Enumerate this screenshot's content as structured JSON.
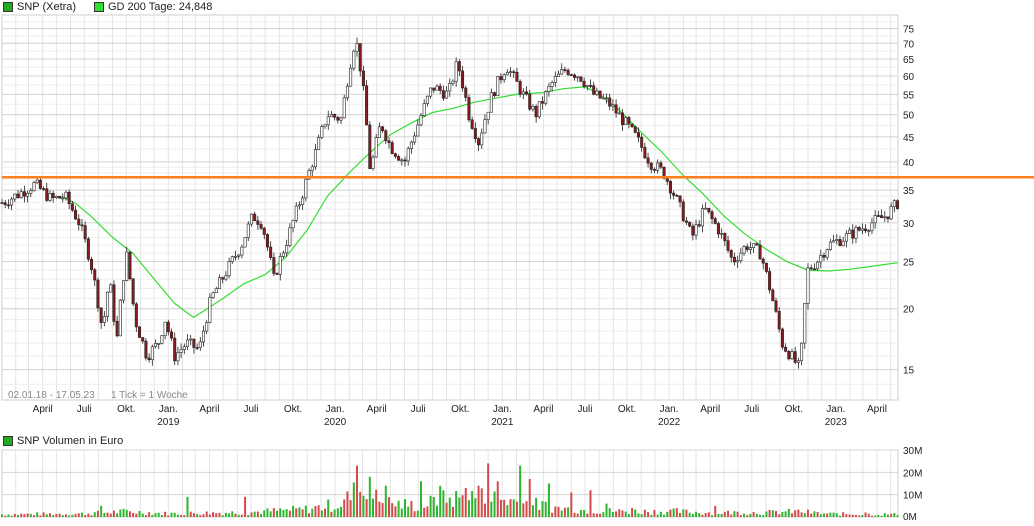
{
  "header": {
    "series_label": "SNP (Xetra)",
    "ma_label": "GD 200 Tage: 24,848",
    "range_label": "02.01.18 - 17.05.23",
    "tick_label": "1 Tick = 1 Woche"
  },
  "volume_header": {
    "label": "SNP Volumen in Euro"
  },
  "colors": {
    "series_swatch": "#22aa22",
    "ma": "#33dd33",
    "hline": "#ff7f1e",
    "up": "#2db52d",
    "down": "#d44a4a"
  },
  "chart_data": [
    {
      "type": "candlestick",
      "scale": "log",
      "ylim": [
        13,
        80
      ],
      "yticks": [
        15,
        20,
        25,
        30,
        35,
        40,
        45,
        50,
        55,
        60,
        65,
        70,
        75
      ],
      "x_month_labels": [
        "April",
        "Juli",
        "Okt.",
        "Jan.",
        "April",
        "Juli",
        "Okt.",
        "Jan.",
        "April",
        "Juli",
        "Okt.",
        "Jan.",
        "April",
        "Juli",
        "Okt.",
        "Jan.",
        "April",
        "Juli",
        "Okt.",
        "Jan.",
        "April"
      ],
      "x_year_labels": [
        "2019",
        "2020",
        "2021",
        "2022",
        "2023"
      ],
      "horizontal_line": 37.2,
      "ma_name": "GD 200 Tage",
      "series": [
        {
          "name": "SNP (Xetra)",
          "anchors": [
            [
              "2018-01-05",
              33
            ],
            [
              "2018-02-10",
              34.5
            ],
            [
              "2018-03-15",
              36
            ],
            [
              "2018-04-20",
              33.5
            ],
            [
              "2018-05-20",
              34
            ],
            [
              "2018-06-20",
              30
            ],
            [
              "2018-07-15",
              25
            ],
            [
              "2018-08-10",
              18
            ],
            [
              "2018-08-25",
              23
            ],
            [
              "2018-09-10",
              17
            ],
            [
              "2018-10-01",
              26
            ],
            [
              "2018-10-20",
              19
            ],
            [
              "2018-11-15",
              16
            ],
            [
              "2018-12-10",
              17
            ],
            [
              "2018-12-25",
              19
            ],
            [
              "2019-01-15",
              16
            ],
            [
              "2019-02-10",
              17
            ],
            [
              "2019-03-10",
              16.5
            ],
            [
              "2019-04-05",
              21
            ],
            [
              "2019-05-10",
              24
            ],
            [
              "2019-06-10",
              27
            ],
            [
              "2019-07-05",
              31
            ],
            [
              "2019-07-25",
              30
            ],
            [
              "2019-08-20",
              23
            ],
            [
              "2019-09-20",
              28
            ],
            [
              "2019-10-20",
              34
            ],
            [
              "2019-11-20",
              42
            ],
            [
              "2019-12-15",
              50
            ],
            [
              "2020-01-15",
              49
            ],
            [
              "2020-02-01",
              62
            ],
            [
              "2020-02-15",
              72
            ],
            [
              "2020-03-01",
              58
            ],
            [
              "2020-03-18",
              38
            ],
            [
              "2020-04-10",
              48
            ],
            [
              "2020-05-01",
              43
            ],
            [
              "2020-06-01",
              40
            ],
            [
              "2020-07-01",
              48
            ],
            [
              "2020-08-01",
              57
            ],
            [
              "2020-09-05",
              55
            ],
            [
              "2020-09-25",
              64
            ],
            [
              "2020-10-20",
              50
            ],
            [
              "2020-11-10",
              44
            ],
            [
              "2020-12-10",
              55
            ],
            [
              "2021-01-10",
              63
            ],
            [
              "2021-02-15",
              55
            ],
            [
              "2021-03-15",
              50
            ],
            [
              "2021-04-20",
              58
            ],
            [
              "2021-05-20",
              62
            ],
            [
              "2021-06-20",
              60
            ],
            [
              "2021-07-20",
              55
            ],
            [
              "2021-08-20",
              53
            ],
            [
              "2021-09-20",
              49
            ],
            [
              "2021-10-20",
              45
            ],
            [
              "2021-11-20",
              40
            ],
            [
              "2021-12-20",
              38
            ],
            [
              "2022-01-20",
              33
            ],
            [
              "2022-02-20",
              28
            ],
            [
              "2022-03-20",
              32
            ],
            [
              "2022-04-20",
              29
            ],
            [
              "2022-05-20",
              25
            ],
            [
              "2022-06-20",
              27
            ],
            [
              "2022-07-20",
              26
            ],
            [
              "2022-08-20",
              20
            ],
            [
              "2022-09-05",
              17
            ],
            [
              "2022-09-25",
              16
            ],
            [
              "2022-10-15",
              15
            ],
            [
              "2022-11-01",
              24
            ],
            [
              "2022-11-20",
              25
            ],
            [
              "2022-12-15",
              27
            ],
            [
              "2023-01-20",
              28
            ],
            [
              "2023-02-20",
              29
            ],
            [
              "2023-03-20",
              30
            ],
            [
              "2023-04-20",
              31
            ],
            [
              "2023-05-17",
              33
            ]
          ]
        },
        {
          "name": "GD 200 Tage",
          "values": [
            [
              "2018-05-10",
              34
            ],
            [
              "2018-06-10",
              33
            ],
            [
              "2018-07-15",
              31
            ],
            [
              "2018-09-01",
              28
            ],
            [
              "2018-10-15",
              26
            ],
            [
              "2018-12-01",
              23
            ],
            [
              "2019-01-15",
              20.5
            ],
            [
              "2019-02-25",
              19.2
            ],
            [
              "2019-03-20",
              19.8
            ],
            [
              "2019-05-01",
              21
            ],
            [
              "2019-06-15",
              22.5
            ],
            [
              "2019-08-01",
              23.5
            ],
            [
              "2019-09-15",
              25.5
            ],
            [
              "2019-11-01",
              29
            ],
            [
              "2019-12-15",
              34
            ],
            [
              "2020-02-01",
              38
            ],
            [
              "2020-03-20",
              42
            ],
            [
              "2020-05-01",
              45.5
            ],
            [
              "2020-06-15",
              48
            ],
            [
              "2020-08-01",
              50.5
            ],
            [
              "2020-09-15",
              51.5
            ],
            [
              "2020-11-01",
              53
            ],
            [
              "2020-12-15",
              54
            ],
            [
              "2021-02-01",
              55
            ],
            [
              "2021-04-01",
              55.5
            ],
            [
              "2021-05-15",
              56.5
            ],
            [
              "2021-07-01",
              57
            ],
            [
              "2021-08-01",
              55
            ],
            [
              "2021-09-15",
              51
            ],
            [
              "2021-11-01",
              46
            ],
            [
              "2021-12-15",
              42
            ],
            [
              "2022-02-01",
              37.5
            ],
            [
              "2022-03-15",
              34.5
            ],
            [
              "2022-05-01",
              31
            ],
            [
              "2022-06-15",
              28.5
            ],
            [
              "2022-08-01",
              26.5
            ],
            [
              "2022-09-15",
              25
            ],
            [
              "2022-11-01",
              24
            ],
            [
              "2022-12-15",
              23.9
            ],
            [
              "2023-02-01",
              24.1
            ],
            [
              "2023-03-15",
              24.4
            ],
            [
              "2023-05-17",
              24.85
            ]
          ]
        }
      ]
    },
    {
      "type": "bar",
      "title": "SNP Volumen in Euro",
      "ylim": [
        0,
        30
      ],
      "yticks": [
        "0M",
        "10M",
        "20M",
        "30M"
      ],
      "anchors": [
        [
          "2018-01-01",
          1.2
        ],
        [
          "2018-07-01",
          1.5
        ],
        [
          "2018-10-01",
          2.5
        ],
        [
          "2019-01-01",
          1.5
        ],
        [
          "2019-07-01",
          2.2
        ],
        [
          "2019-11-01",
          3.5
        ],
        [
          "2020-01-15",
          6
        ],
        [
          "2020-02-20",
          12
        ],
        [
          "2020-03-20",
          9
        ],
        [
          "2020-05-01",
          6
        ],
        [
          "2020-07-01",
          5
        ],
        [
          "2020-09-01",
          8
        ],
        [
          "2020-11-01",
          9
        ],
        [
          "2021-01-01",
          8
        ],
        [
          "2021-03-01",
          6
        ],
        [
          "2021-05-01",
          4
        ],
        [
          "2021-07-01",
          3
        ],
        [
          "2021-10-01",
          2.5
        ],
        [
          "2022-01-01",
          2.5
        ],
        [
          "2022-04-01",
          2
        ],
        [
          "2022-08-01",
          2
        ],
        [
          "2022-10-15",
          2.5
        ],
        [
          "2022-12-01",
          1.5
        ],
        [
          "2023-03-01",
          1.2
        ],
        [
          "2023-05-17",
          1.2
        ]
      ],
      "spikes": [
        [
          "2018-08-10",
          5
        ],
        [
          "2019-02-15",
          9
        ],
        [
          "2019-06-15",
          9
        ],
        [
          "2020-02-15",
          23
        ],
        [
          "2020-03-15",
          18
        ],
        [
          "2020-04-20",
          14
        ],
        [
          "2020-07-10",
          16
        ],
        [
          "2020-08-20",
          14
        ],
        [
          "2020-10-10",
          13
        ],
        [
          "2020-11-10",
          14
        ],
        [
          "2020-12-01",
          24
        ],
        [
          "2020-12-20",
          16
        ],
        [
          "2021-02-10",
          23
        ],
        [
          "2021-03-01",
          17
        ],
        [
          "2021-04-10",
          15
        ],
        [
          "2021-06-01",
          11
        ],
        [
          "2021-07-15",
          12
        ],
        [
          "2021-08-20",
          6
        ],
        [
          "2021-10-10",
          4
        ],
        [
          "2022-01-20",
          4
        ],
        [
          "2022-04-10",
          5
        ],
        [
          "2022-10-05",
          3
        ],
        [
          "2023-03-10",
          2
        ]
      ]
    }
  ]
}
